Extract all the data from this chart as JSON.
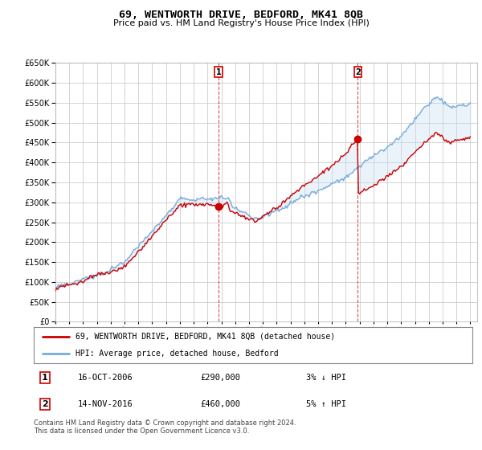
{
  "title": "69, WENTWORTH DRIVE, BEDFORD, MK41 8QB",
  "subtitle": "Price paid vs. HM Land Registry's House Price Index (HPI)",
  "legend_line1": "69, WENTWORTH DRIVE, BEDFORD, MK41 8QB (detached house)",
  "legend_line2": "HPI: Average price, detached house, Bedford",
  "footer": "Contains HM Land Registry data © Crown copyright and database right 2024.\nThis data is licensed under the Open Government Licence v3.0.",
  "sale1_date": 2006.79,
  "sale1_price": 290000,
  "sale1_label": "16-OCT-2006",
  "sale1_hpi_diff": "3% ↓ HPI",
  "sale2_date": 2016.87,
  "sale2_price": 460000,
  "sale2_label": "14-NOV-2016",
  "sale2_hpi_diff": "5% ↑ HPI",
  "xmin": 1995,
  "xmax": 2025.5,
  "ymin": 0,
  "ymax": 650000,
  "yticks": [
    0,
    50000,
    100000,
    150000,
    200000,
    250000,
    300000,
    350000,
    400000,
    450000,
    500000,
    550000,
    600000,
    650000
  ],
  "hpi_color": "#7aabdb",
  "fill_color": "#c8dff2",
  "price_color": "#cc0000",
  "marker_color": "#cc0000",
  "vline_color": "#cc0000",
  "background_color": "#ffffff",
  "grid_color": "#cccccc"
}
